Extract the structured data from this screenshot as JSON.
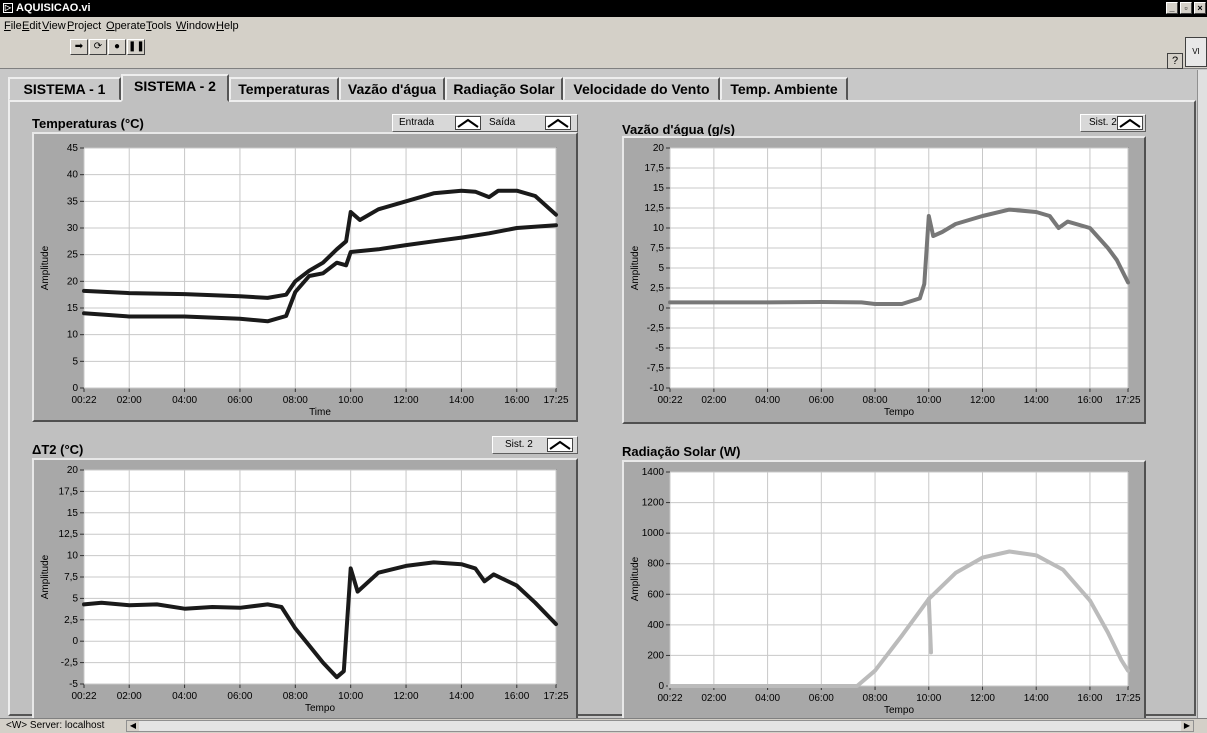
{
  "window": {
    "title": "AQUISICAO.vi",
    "icon": "labview-vi-icon"
  },
  "window_controls": {
    "minimize": "_",
    "maximize": "▫",
    "close": "×"
  },
  "menu": [
    "File",
    "Edit",
    "View",
    "Project",
    "Operate",
    "Tools",
    "Window",
    "Help"
  ],
  "toolbar": {
    "icons": [
      "run-arrow-icon",
      "run-continuously-icon",
      "abort-icon",
      "pause-icon"
    ],
    "help": "?"
  },
  "tabs": [
    {
      "label": "SISTEMA - 1",
      "active": false
    },
    {
      "label": "SISTEMA - 2",
      "active": true
    },
    {
      "label": "Temperaturas",
      "active": false
    },
    {
      "label": "Vazão d'água",
      "active": false
    },
    {
      "label": "Radiação Solar",
      "active": false
    },
    {
      "label": "Velocidade do Vento",
      "active": false
    },
    {
      "label": "Temp. Ambiente",
      "active": false
    }
  ],
  "charts": {
    "temperaturas": {
      "title": "Temperaturas (°C)",
      "legend": [
        "Entrada",
        "Saída"
      ]
    },
    "vazao": {
      "title": "Vazão d'água (g/s)",
      "legend": [
        "Sist. 2"
      ]
    },
    "delta": {
      "title": "ΔT2 (°C)",
      "legend": [
        "Sist. 2"
      ]
    },
    "radiacao": {
      "title": "Radiação Solar (W)",
      "legend": []
    }
  },
  "status": {
    "server": "<W> Server: localhost"
  },
  "chart_data": [
    {
      "type": "line",
      "title": "Temperaturas (°C)",
      "xlabel": "Time",
      "ylabel": "Amplitude",
      "x_ticks": [
        "00:22",
        "02:00",
        "04:00",
        "06:00",
        "08:00",
        "10:00",
        "12:00",
        "14:00",
        "16:00",
        "17:25"
      ],
      "y_ticks": [
        "0",
        "5",
        "10",
        "15",
        "20",
        "25",
        "30",
        "35",
        "40",
        "45"
      ],
      "ylim": [
        0,
        45
      ],
      "grid": true,
      "series": [
        {
          "name": "Saída",
          "color": "#1a1a1a",
          "points": [
            [
              "00:22",
              18.2
            ],
            [
              "02:00",
              17.8
            ],
            [
              "04:00",
              17.6
            ],
            [
              "06:00",
              17.2
            ],
            [
              "07:00",
              16.9
            ],
            [
              "07:40",
              17.5
            ],
            [
              "08:00",
              20
            ],
            [
              "08:30",
              22
            ],
            [
              "09:00",
              23.5
            ],
            [
              "09:30",
              26
            ],
            [
              "09:50",
              27.5
            ],
            [
              "10:00",
              33
            ],
            [
              "10:20",
              31.5
            ],
            [
              "11:00",
              33.5
            ],
            [
              "12:00",
              35
            ],
            [
              "13:00",
              36.5
            ],
            [
              "14:00",
              37
            ],
            [
              "14:30",
              36.8
            ],
            [
              "15:00",
              35.8
            ],
            [
              "15:20",
              37
            ],
            [
              "16:00",
              37
            ],
            [
              "16:40",
              36
            ],
            [
              "17:25",
              32.5
            ]
          ]
        },
        {
          "name": "Entrada",
          "color": "#1a1a1a",
          "points": [
            [
              "00:22",
              14
            ],
            [
              "02:00",
              13.4
            ],
            [
              "04:00",
              13.4
            ],
            [
              "06:00",
              13
            ],
            [
              "07:00",
              12.5
            ],
            [
              "07:40",
              13.5
            ],
            [
              "08:00",
              18
            ],
            [
              "08:30",
              21
            ],
            [
              "09:00",
              21.5
            ],
            [
              "09:30",
              23.5
            ],
            [
              "09:50",
              23
            ],
            [
              "10:00",
              25.5
            ],
            [
              "11:00",
              26
            ],
            [
              "12:00",
              26.8
            ],
            [
              "13:00",
              27.5
            ],
            [
              "14:00",
              28.2
            ],
            [
              "15:00",
              29
            ],
            [
              "16:00",
              30
            ],
            [
              "17:25",
              30.5
            ]
          ]
        }
      ]
    },
    {
      "type": "line",
      "title": "Vazão d'água (g/s)",
      "xlabel": "Tempo",
      "ylabel": "Amplitude",
      "x_ticks": [
        "00:22",
        "02:00",
        "04:00",
        "06:00",
        "08:00",
        "10:00",
        "12:00",
        "14:00",
        "16:00",
        "17:25"
      ],
      "y_ticks": [
        "-10",
        "-7,5",
        "-5",
        "-2,5",
        "0",
        "2,5",
        "5",
        "7,5",
        "10",
        "12,5",
        "15",
        "17,5",
        "20"
      ],
      "ylim": [
        -10,
        20
      ],
      "grid": true,
      "series": [
        {
          "name": "Sist. 2",
          "color": "#777777",
          "points": [
            [
              "00:22",
              0.7
            ],
            [
              "02:00",
              0.7
            ],
            [
              "04:00",
              0.7
            ],
            [
              "06:00",
              0.75
            ],
            [
              "07:30",
              0.7
            ],
            [
              "08:00",
              0.5
            ],
            [
              "09:00",
              0.5
            ],
            [
              "09:40",
              1.2
            ],
            [
              "09:50",
              3
            ],
            [
              "10:00",
              11.5
            ],
            [
              "10:10",
              9
            ],
            [
              "10:30",
              9.5
            ],
            [
              "11:00",
              10.5
            ],
            [
              "12:00",
              11.5
            ],
            [
              "13:00",
              12.3
            ],
            [
              "14:00",
              12
            ],
            [
              "14:30",
              11.5
            ],
            [
              "14:50",
              10
            ],
            [
              "15:10",
              10.8
            ],
            [
              "16:00",
              10
            ],
            [
              "16:40",
              7.5
            ],
            [
              "17:00",
              6
            ],
            [
              "17:25",
              3.2
            ]
          ]
        }
      ]
    },
    {
      "type": "line",
      "title": "ΔT2 (°C)",
      "xlabel": "Tempo",
      "ylabel": "Amplitude",
      "x_ticks": [
        "00:22",
        "02:00",
        "04:00",
        "06:00",
        "08:00",
        "10:00",
        "12:00",
        "14:00",
        "16:00",
        "17:25"
      ],
      "y_ticks": [
        "-5",
        "-2,5",
        "0",
        "2,5",
        "5",
        "7,5",
        "10",
        "12,5",
        "15",
        "17,5",
        "20"
      ],
      "ylim": [
        -5,
        20
      ],
      "grid": true,
      "series": [
        {
          "name": "Sist. 2",
          "color": "#1a1a1a",
          "points": [
            [
              "00:22",
              4.3
            ],
            [
              "01:00",
              4.5
            ],
            [
              "02:00",
              4.2
            ],
            [
              "03:00",
              4.3
            ],
            [
              "04:00",
              3.8
            ],
            [
              "05:00",
              4
            ],
            [
              "06:00",
              3.9
            ],
            [
              "07:00",
              4.3
            ],
            [
              "07:30",
              4
            ],
            [
              "08:00",
              1.5
            ],
            [
              "08:30",
              -0.5
            ],
            [
              "09:00",
              -2.5
            ],
            [
              "09:30",
              -4.2
            ],
            [
              "09:45",
              -3.5
            ],
            [
              "10:00",
              8.5
            ],
            [
              "10:15",
              5.8
            ],
            [
              "11:00",
              8
            ],
            [
              "12:00",
              8.8
            ],
            [
              "13:00",
              9.2
            ],
            [
              "14:00",
              9
            ],
            [
              "14:30",
              8.5
            ],
            [
              "14:50",
              7
            ],
            [
              "15:10",
              7.8
            ],
            [
              "16:00",
              6.5
            ],
            [
              "16:40",
              4.5
            ],
            [
              "17:25",
              2
            ]
          ]
        }
      ]
    },
    {
      "type": "line",
      "title": "Radiação Solar (W)",
      "xlabel": "Tempo",
      "ylabel": "Amplitude",
      "x_ticks": [
        "00:22",
        "02:00",
        "04:00",
        "06:00",
        "08:00",
        "10:00",
        "12:00",
        "14:00",
        "16:00",
        "17:25"
      ],
      "y_ticks": [
        "0",
        "200",
        "400",
        "600",
        "800",
        "1000",
        "1200",
        "1400"
      ],
      "ylim": [
        0,
        1400
      ],
      "grid": true,
      "series": [
        {
          "name": "",
          "color": "#bbbbbb",
          "points": [
            [
              "00:22",
              0
            ],
            [
              "06:00",
              0
            ],
            [
              "07:20",
              0
            ],
            [
              "08:00",
              100
            ],
            [
              "09:00",
              330
            ],
            [
              "10:00",
              570
            ],
            [
              "11:00",
              740
            ],
            [
              "12:00",
              840
            ],
            [
              "13:00",
              880
            ],
            [
              "14:00",
              855
            ],
            [
              "15:00",
              760
            ],
            [
              "16:00",
              560
            ],
            [
              "16:40",
              350
            ],
            [
              "17:10",
              170
            ],
            [
              "17:25",
              100
            ]
          ]
        },
        {
          "name": "",
          "color": "#bbbbbb",
          "points": [
            [
              "10:00",
              570
            ],
            [
              "10:05",
              220
            ]
          ]
        }
      ]
    }
  ]
}
